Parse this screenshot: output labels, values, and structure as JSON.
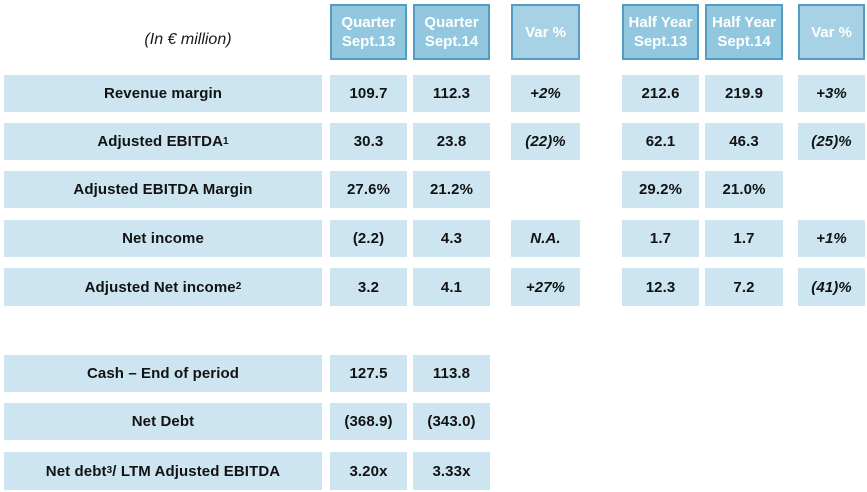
{
  "colors": {
    "header_fill": "#92C7E0",
    "header_var_fill": "#A7D1E4",
    "header_border": "#549CC4",
    "header_text": "#FFFFFF",
    "cell_fill": "#CDE5F1",
    "text_color": "#121212"
  },
  "table": {
    "unit_label": "(In € million)",
    "headers": [
      {
        "line1": "Quarter",
        "line2": "Sept.13"
      },
      {
        "line1": "Quarter",
        "line2": "Sept.14"
      },
      {
        "line1": "Var %",
        "line2": ""
      },
      {
        "line1": "Half Year",
        "line2": "Sept.13"
      },
      {
        "line1": "Half Year",
        "line2": "Sept.14"
      },
      {
        "line1": "Var %",
        "line2": ""
      }
    ],
    "rows": [
      {
        "label_pre": "Revenue margin",
        "label_sup": "",
        "label_post": "",
        "q13": "109.7",
        "q14": "112.3",
        "var_q": "+2%",
        "h13": "212.6",
        "h14": "219.9",
        "var_h": "+3%"
      },
      {
        "label_pre": "Adjusted EBITDA",
        "label_sup": "1",
        "label_post": "",
        "q13": "30.3",
        "q14": "23.8",
        "var_q": "(22)%",
        "h13": "62.1",
        "h14": "46.3",
        "var_h": "(25)%"
      },
      {
        "label_pre": "Adjusted EBITDA Margin",
        "label_sup": "",
        "label_post": "",
        "q13": "27.6%",
        "q14": "21.2%",
        "var_q": "",
        "h13": "29.2%",
        "h14": "21.0%",
        "var_h": ""
      },
      {
        "label_pre": "Net income",
        "label_sup": "",
        "label_post": "",
        "q13": "(2.2)",
        "q14": "4.3",
        "var_q": "N.A.",
        "h13": "1.7",
        "h14": "1.7",
        "var_h": "+1%"
      },
      {
        "label_pre": "Adjusted Net income",
        "label_sup": "2",
        "label_post": "",
        "q13": "3.2",
        "q14": "4.1",
        "var_q": "+27%",
        "h13": "12.3",
        "h14": "7.2",
        "var_h": "(41)%"
      }
    ],
    "bottom_rows": [
      {
        "label_pre": "Cash – End of period",
        "label_sup": "",
        "label_post": "",
        "q13": "127.5",
        "q14": "113.8"
      },
      {
        "label_pre": "Net Debt",
        "label_sup": "",
        "label_post": "",
        "q13": "(368.9)",
        "q14": "(343.0)"
      },
      {
        "label_pre": "Net debt",
        "label_sup": "3",
        "label_post": " / LTM Adjusted EBITDA",
        "q13": "3.20x",
        "q14": "3.33x"
      }
    ]
  }
}
